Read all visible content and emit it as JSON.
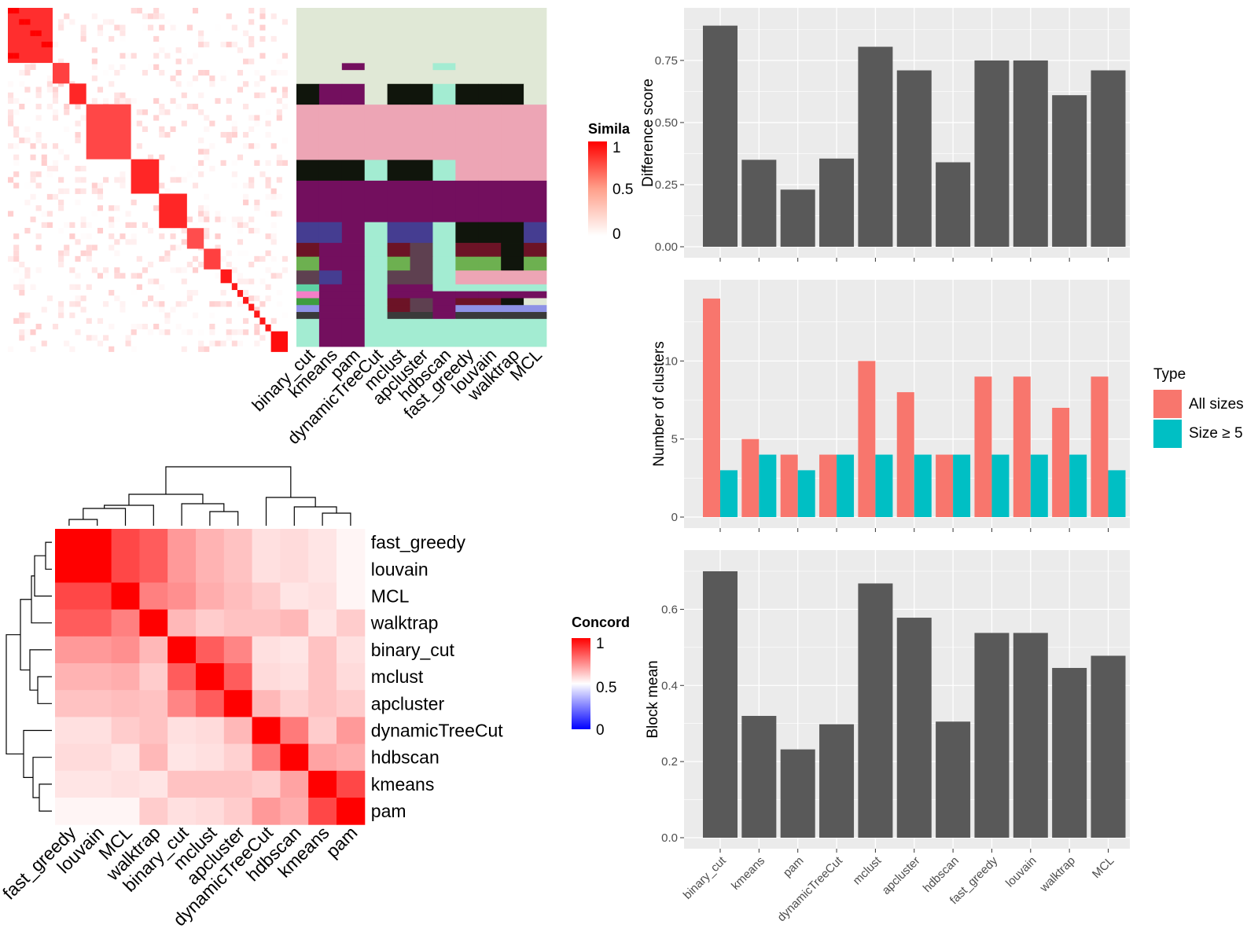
{
  "colors": {
    "bar_dark": "#595959",
    "all_sizes": "#F8766D",
    "size_ge5": "#00BFC4",
    "panel_bg": "#EBEBEB",
    "grid": "#FFFFFF"
  },
  "methods_barplot": [
    "binary_cut",
    "kmeans",
    "pam",
    "dynamicTreeCut",
    "mclust",
    "apcluster",
    "hdbscan",
    "fast_greedy",
    "louvain",
    "walktrap",
    "MCL"
  ],
  "similarity_heatmap": {
    "legend_title": "Simila",
    "legend_ticks": [
      "1",
      "0.5",
      "0"
    ],
    "column_labels": [
      "binary_cut",
      "kmeans",
      "pam",
      "dynamicTreeCut",
      "mclust",
      "apcluster",
      "hdbscan",
      "fast_greedy",
      "louvain",
      "walktrap",
      "MCL"
    ]
  },
  "concordance_heatmap": {
    "legend_title": "Concord",
    "legend_ticks": [
      "1",
      "0.5",
      "0"
    ],
    "order": [
      "fast_greedy",
      "louvain",
      "MCL",
      "walktrap",
      "binary_cut",
      "mclust",
      "apcluster",
      "dynamicTreeCut",
      "hdbscan",
      "kmeans",
      "pam"
    ]
  },
  "legend_type": {
    "title": "Type",
    "items": [
      "All sizes",
      "Size ≥ 5"
    ]
  },
  "chart_data": [
    {
      "type": "bar",
      "ylabel": "Difference score",
      "categories": [
        "binary_cut",
        "kmeans",
        "pam",
        "dynamicTreeCut",
        "mclust",
        "apcluster",
        "hdbscan",
        "fast_greedy",
        "louvain",
        "walktrap",
        "MCL"
      ],
      "values": [
        0.89,
        0.35,
        0.23,
        0.355,
        0.805,
        0.71,
        0.34,
        0.75,
        0.75,
        0.61,
        0.71
      ],
      "ylim": [
        0,
        0.93
      ],
      "yticks": [
        0,
        0.25,
        0.5,
        0.75
      ],
      "ytick_labels": [
        "0.00",
        "0.25",
        "0.50",
        "0.75"
      ]
    },
    {
      "type": "bar",
      "ylabel": "Number of clusters",
      "categories": [
        "binary_cut",
        "kmeans",
        "pam",
        "dynamicTreeCut",
        "mclust",
        "apcluster",
        "hdbscan",
        "fast_greedy",
        "louvain",
        "walktrap",
        "MCL"
      ],
      "series": [
        {
          "name": "All sizes",
          "values": [
            14,
            5,
            4,
            4,
            10,
            8,
            4,
            9,
            9,
            7,
            9
          ]
        },
        {
          "name": "Size ≥ 5",
          "values": [
            3,
            4,
            3,
            4,
            4,
            4,
            4,
            4,
            4,
            4,
            3
          ]
        }
      ],
      "ylim": [
        0,
        14.7
      ],
      "yticks": [
        0,
        5,
        10
      ],
      "ytick_labels": [
        "0",
        "5",
        "10"
      ],
      "legend": "right"
    },
    {
      "type": "bar",
      "ylabel": "Block mean",
      "categories": [
        "binary_cut",
        "kmeans",
        "pam",
        "dynamicTreeCut",
        "mclust",
        "apcluster",
        "hdbscan",
        "fast_greedy",
        "louvain",
        "walktrap",
        "MCL"
      ],
      "values": [
        0.7,
        0.32,
        0.232,
        0.298,
        0.668,
        0.578,
        0.305,
        0.538,
        0.538,
        0.446,
        0.478
      ],
      "ylim": [
        0,
        0.735
      ],
      "yticks": [
        0,
        0.2,
        0.4,
        0.6
      ],
      "ytick_labels": [
        "0.0",
        "0.2",
        "0.4",
        "0.6"
      ]
    },
    {
      "type": "heatmap",
      "name": "concordance",
      "rows": [
        "fast_greedy",
        "louvain",
        "MCL",
        "walktrap",
        "binary_cut",
        "mclust",
        "apcluster",
        "dynamicTreeCut",
        "hdbscan",
        "kmeans",
        "pam"
      ],
      "columns": [
        "fast_greedy",
        "louvain",
        "MCL",
        "walktrap",
        "binary_cut",
        "mclust",
        "apcluster",
        "dynamicTreeCut",
        "hdbscan",
        "kmeans",
        "pam"
      ],
      "values": [
        [
          1.0,
          1.0,
          0.86,
          0.82,
          0.7,
          0.65,
          0.62,
          0.56,
          0.57,
          0.55,
          0.52
        ],
        [
          1.0,
          1.0,
          0.86,
          0.82,
          0.7,
          0.65,
          0.62,
          0.56,
          0.57,
          0.55,
          0.52
        ],
        [
          0.86,
          0.86,
          1.0,
          0.75,
          0.72,
          0.66,
          0.63,
          0.6,
          0.55,
          0.56,
          0.52
        ],
        [
          0.82,
          0.82,
          0.75,
          1.0,
          0.64,
          0.6,
          0.62,
          0.62,
          0.64,
          0.55,
          0.6
        ],
        [
          0.7,
          0.7,
          0.72,
          0.64,
          1.0,
          0.82,
          0.74,
          0.56,
          0.55,
          0.62,
          0.56
        ],
        [
          0.65,
          0.65,
          0.66,
          0.6,
          0.82,
          1.0,
          0.82,
          0.57,
          0.56,
          0.62,
          0.57
        ],
        [
          0.62,
          0.62,
          0.63,
          0.62,
          0.74,
          0.82,
          1.0,
          0.64,
          0.59,
          0.62,
          0.6
        ],
        [
          0.56,
          0.56,
          0.6,
          0.62,
          0.56,
          0.57,
          0.64,
          1.0,
          0.76,
          0.6,
          0.7
        ],
        [
          0.57,
          0.57,
          0.55,
          0.64,
          0.55,
          0.56,
          0.59,
          0.76,
          1.0,
          0.68,
          0.66
        ],
        [
          0.55,
          0.55,
          0.56,
          0.55,
          0.62,
          0.62,
          0.62,
          0.6,
          0.68,
          1.0,
          0.86
        ],
        [
          0.52,
          0.52,
          0.52,
          0.6,
          0.56,
          0.57,
          0.6,
          0.7,
          0.66,
          0.86,
          1.0
        ]
      ],
      "clim": [
        0,
        1
      ]
    },
    {
      "type": "heatmap",
      "name": "similarity",
      "blocks": [
        {
          "start": 0,
          "end": 8,
          "level": 0.82
        },
        {
          "start": 8,
          "end": 11,
          "level": 0.75
        },
        {
          "start": 11,
          "end": 14,
          "level": 0.85
        },
        {
          "start": 14,
          "end": 22,
          "level": 0.72
        },
        {
          "start": 22,
          "end": 27,
          "level": 0.85
        },
        {
          "start": 27,
          "end": 32,
          "level": 0.85
        },
        {
          "start": 32,
          "end": 35,
          "level": 0.7
        },
        {
          "start": 35,
          "end": 38,
          "level": 0.75
        },
        {
          "start": 38,
          "end": 40,
          "level": 0.9
        },
        {
          "start": 40,
          "end": 41,
          "level": 0.9
        },
        {
          "start": 41,
          "end": 42,
          "level": 0.9
        },
        {
          "start": 42,
          "end": 43,
          "level": 0.9
        },
        {
          "start": 43,
          "end": 44,
          "level": 0.9
        },
        {
          "start": 44,
          "end": 45,
          "level": 0.9
        },
        {
          "start": 45,
          "end": 46,
          "level": 0.9
        },
        {
          "start": 46,
          "end": 47,
          "level": 0.9
        },
        {
          "start": 47,
          "end": 50,
          "level": 0.95
        }
      ],
      "clim": [
        0,
        1
      ]
    },
    {
      "type": "heatmap",
      "name": "cluster-assignment",
      "columns": [
        "binary_cut",
        "kmeans",
        "pam",
        "dynamicTreeCut",
        "mclust",
        "apcluster",
        "hdbscan",
        "fast_greedy",
        "louvain",
        "walktrap",
        "MCL"
      ],
      "rows": [
        {
          "h": 8,
          "c": [
            "#E0E8D6",
            "#E0E8D6",
            "#E0E8D6",
            "#E0E8D6",
            "#E0E8D6",
            "#E0E8D6",
            "#E0E8D6",
            "#E0E8D6",
            "#E0E8D6",
            "#E0E8D6",
            "#E0E8D6"
          ]
        },
        {
          "h": 1,
          "c": [
            "#E0E8D6",
            "#E0E8D6",
            "#730F5E",
            "#E0E8D6",
            "#E0E8D6",
            "#E0E8D6",
            "#A3ECD2",
            "#E0E8D6",
            "#E0E8D6",
            "#E0E8D6",
            "#E0E8D6"
          ]
        },
        {
          "h": 2,
          "c": [
            "#E0E8D6",
            "#E0E8D6",
            "#E0E8D6",
            "#E0E8D6",
            "#E0E8D6",
            "#E0E8D6",
            "#E0E8D6",
            "#E0E8D6",
            "#E0E8D6",
            "#E0E8D6",
            "#E0E8D6"
          ]
        },
        {
          "h": 3,
          "c": [
            "#10150C",
            "#730F5E",
            "#730F5E",
            "#E0E8D6",
            "#10150C",
            "#10150C",
            "#A3ECD2",
            "#10150C",
            "#10150C",
            "#10150C",
            "#E0E8D6"
          ]
        },
        {
          "h": 8,
          "c": [
            "#EDA5B5",
            "#EDA5B5",
            "#EDA5B5",
            "#EDA5B5",
            "#EDA5B5",
            "#EDA5B5",
            "#EDA5B5",
            "#EDA5B5",
            "#EDA5B5",
            "#EDA5B5",
            "#EDA5B5"
          ]
        },
        {
          "h": 3,
          "c": [
            "#10150C",
            "#10150C",
            "#10150C",
            "#A3ECD2",
            "#10150C",
            "#10150C",
            "#A3ECD2",
            "#EDA5B5",
            "#EDA5B5",
            "#EDA5B5",
            "#EDA5B5"
          ]
        },
        {
          "h": 6,
          "c": [
            "#730F5E",
            "#730F5E",
            "#730F5E",
            "#730F5E",
            "#730F5E",
            "#730F5E",
            "#730F5E",
            "#730F5E",
            "#730F5E",
            "#730F5E",
            "#730F5E"
          ]
        },
        {
          "h": 3,
          "c": [
            "#453D91",
            "#453D91",
            "#730F5E",
            "#A3ECD2",
            "#453D91",
            "#453D91",
            "#A3ECD2",
            "#10150C",
            "#10150C",
            "#10150C",
            "#453D91"
          ]
        },
        {
          "h": 2,
          "c": [
            "#6C1326",
            "#730F5E",
            "#730F5E",
            "#A3ECD2",
            "#6C1326",
            "#5E4050",
            "#A3ECD2",
            "#6C1326",
            "#6C1326",
            "#10150C",
            "#6C1326"
          ]
        },
        {
          "h": 2,
          "c": [
            "#6DB050",
            "#730F5E",
            "#730F5E",
            "#A3ECD2",
            "#6DB050",
            "#5E4050",
            "#A3ECD2",
            "#6DB050",
            "#6DB050",
            "#10150C",
            "#6DB050"
          ]
        },
        {
          "h": 2,
          "c": [
            "#5E4050",
            "#453D91",
            "#730F5E",
            "#A3ECD2",
            "#5E4050",
            "#5E4050",
            "#A3ECD2",
            "#EDA5B5",
            "#EDA5B5",
            "#EDA5B5",
            "#EDA5B5"
          ]
        },
        {
          "h": 1,
          "c": [
            "#5ED2A4",
            "#730F5E",
            "#730F5E",
            "#A3ECD2",
            "#730F5E",
            "#730F5E",
            "#A3ECD2",
            "#A3ECD2",
            "#A3ECD2",
            "#A3ECD2",
            "#A3ECD2"
          ]
        },
        {
          "h": 1,
          "c": [
            "#F47FC8",
            "#730F5E",
            "#730F5E",
            "#A3ECD2",
            "#730F5E",
            "#730F5E",
            "#730F5E",
            "#730F5E",
            "#730F5E",
            "#730F5E",
            "#730F5E"
          ]
        },
        {
          "h": 1,
          "c": [
            "#3E9D3F",
            "#730F5E",
            "#730F5E",
            "#A3ECD2",
            "#6C1326",
            "#5E4050",
            "#730F5E",
            "#6C1326",
            "#6C1326",
            "#10150C",
            "#E0E8D6"
          ]
        },
        {
          "h": 1,
          "c": [
            "#8E92E6",
            "#730F5E",
            "#730F5E",
            "#A3ECD2",
            "#6C1326",
            "#5E4050",
            "#730F5E",
            "#8E92E6",
            "#8E92E6",
            "#8E92E6",
            "#8E92E6"
          ]
        },
        {
          "h": 1,
          "c": [
            "#3A3A3A",
            "#730F5E",
            "#730F5E",
            "#A3ECD2",
            "#3A3A3A",
            "#3A3A3A",
            "#730F5E",
            "#3A3A3A",
            "#3A3A3A",
            "#3A3A3A",
            "#3A3A3A"
          ]
        },
        {
          "h": 4,
          "c": [
            "#A3ECD2",
            "#730F5E",
            "#730F5E",
            "#A3ECD2",
            "#A3ECD2",
            "#A3ECD2",
            "#A3ECD2",
            "#A3ECD2",
            "#A3ECD2",
            "#A3ECD2",
            "#A3ECD2"
          ]
        }
      ]
    }
  ]
}
